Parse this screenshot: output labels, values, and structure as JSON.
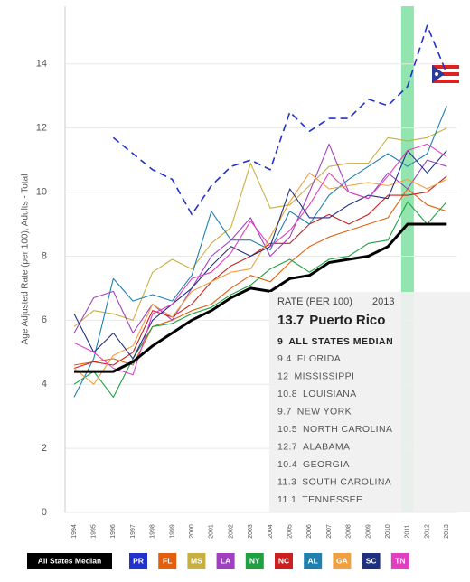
{
  "chart_data": {
    "type": "line",
    "y_label": "Age Adjusted Rate (per 100), Adults - Total",
    "categories": [
      "1994",
      "1995",
      "1996",
      "1997",
      "1998",
      "1999",
      "2000",
      "2001",
      "2002",
      "2003",
      "2004",
      "2005",
      "2006",
      "2007",
      "2008",
      "2009",
      "2010",
      "2011",
      "2012",
      "2013"
    ],
    "ylim": [
      0,
      15.8
    ],
    "yticks": [
      0,
      2,
      4,
      6,
      8,
      10,
      12,
      14
    ],
    "grid": true,
    "highlight": "2011",
    "tooltip_heading": "RATE (PER 100)",
    "series": [
      {
        "name": "All States Median",
        "full_name": "ALL STATES MEDIAN",
        "color": "#000000",
        "line_style": "thick",
        "values": [
          4.4,
          4.4,
          4.4,
          4.7,
          5.2,
          5.6,
          6.0,
          6.3,
          6.7,
          7.0,
          6.9,
          7.3,
          7.4,
          7.8,
          7.9,
          8.0,
          8.3,
          9.0,
          9.0,
          9
        ]
      },
      {
        "name": "PR",
        "full_name": "Puerto Rico",
        "color": "#2233cc",
        "line_style": "dashed",
        "values": [
          null,
          null,
          11.7,
          11.2,
          10.7,
          10.4,
          9.3,
          10.2,
          10.8,
          11.0,
          10.7,
          12.5,
          11.9,
          12.3,
          12.3,
          12.9,
          12.7,
          13.3,
          15.2,
          13.7
        ]
      },
      {
        "name": "FL",
        "full_name": "FLORIDA",
        "color": "#e06010",
        "line_style": "solid",
        "values": [
          4.6,
          4.7,
          4.8,
          4.6,
          5.8,
          6.0,
          6.3,
          6.5,
          7.0,
          7.4,
          7.2,
          7.8,
          8.3,
          8.6,
          8.8,
          9.0,
          9.2,
          10.1,
          9.6,
          9.4
        ]
      },
      {
        "name": "MS",
        "full_name": "MISSISSIPPI",
        "color": "#c8b040",
        "line_style": "solid",
        "values": [
          5.8,
          6.3,
          6.2,
          6.0,
          7.5,
          7.9,
          7.6,
          8.4,
          8.9,
          10.9,
          9.5,
          9.6,
          10.2,
          10.8,
          10.9,
          10.9,
          11.7,
          11.6,
          11.7,
          12
        ]
      },
      {
        "name": "LA",
        "full_name": "LOUISIANA",
        "color": "#a040c0",
        "line_style": "solid",
        "values": [
          5.6,
          6.7,
          6.9,
          5.6,
          6.5,
          6.0,
          7.0,
          8.0,
          8.5,
          9.2,
          8.0,
          8.6,
          10.0,
          11.5,
          10.0,
          9.8,
          10.6,
          10.1,
          11.0,
          10.8
        ]
      },
      {
        "name": "NY",
        "full_name": "NEW YORK",
        "color": "#20a040",
        "line_style": "solid",
        "values": [
          4.0,
          4.4,
          3.6,
          4.8,
          5.8,
          5.9,
          6.2,
          6.4,
          6.8,
          7.1,
          7.6,
          7.9,
          7.5,
          7.9,
          8.0,
          8.4,
          8.5,
          9.7,
          9.0,
          9.7
        ]
      },
      {
        "name": "NC",
        "full_name": "NORTH CAROLINA",
        "color": "#cc2020",
        "line_style": "solid",
        "values": [
          4.5,
          4.7,
          4.6,
          5.0,
          6.3,
          6.1,
          6.5,
          7.2,
          7.7,
          8.0,
          8.4,
          8.4,
          9.0,
          9.3,
          9.0,
          9.3,
          9.9,
          9.9,
          10.0,
          10.5
        ]
      },
      {
        "name": "AL",
        "full_name": "ALABAMA",
        "color": "#2080b0",
        "line_style": "solid",
        "values": [
          3.6,
          4.8,
          7.3,
          6.6,
          6.8,
          6.6,
          7.4,
          9.4,
          8.5,
          8.5,
          8.2,
          9.4,
          9.0,
          9.9,
          10.4,
          10.8,
          11.2,
          10.8,
          11.2,
          12.7
        ]
      },
      {
        "name": "GA",
        "full_name": "GEORGIA",
        "color": "#f0a040",
        "line_style": "solid",
        "values": [
          4.5,
          4.0,
          4.9,
          5.2,
          6.5,
          6.1,
          6.9,
          7.2,
          7.5,
          7.6,
          8.6,
          9.7,
          10.6,
          10.1,
          10.2,
          10.3,
          10.2,
          10.4,
          10.1,
          10.4
        ]
      },
      {
        "name": "SC",
        "full_name": "SOUTH CAROLINA",
        "color": "#203080",
        "line_style": "solid",
        "values": [
          6.2,
          5.0,
          5.6,
          4.8,
          6.0,
          6.5,
          7.0,
          7.7,
          8.3,
          8.0,
          8.3,
          10.1,
          9.2,
          9.2,
          9.6,
          9.9,
          9.8,
          11.3,
          10.6,
          11.3
        ]
      },
      {
        "name": "TN",
        "full_name": "TENNESSEE",
        "color": "#e040c0",
        "line_style": "solid",
        "values": [
          5.3,
          5.0,
          4.5,
          4.3,
          6.2,
          6.5,
          7.3,
          7.5,
          8.1,
          9.1,
          8.3,
          8.8,
          9.6,
          10.6,
          10.0,
          9.8,
          10.5,
          11.3,
          11.5,
          11.1
        ]
      }
    ]
  }
}
